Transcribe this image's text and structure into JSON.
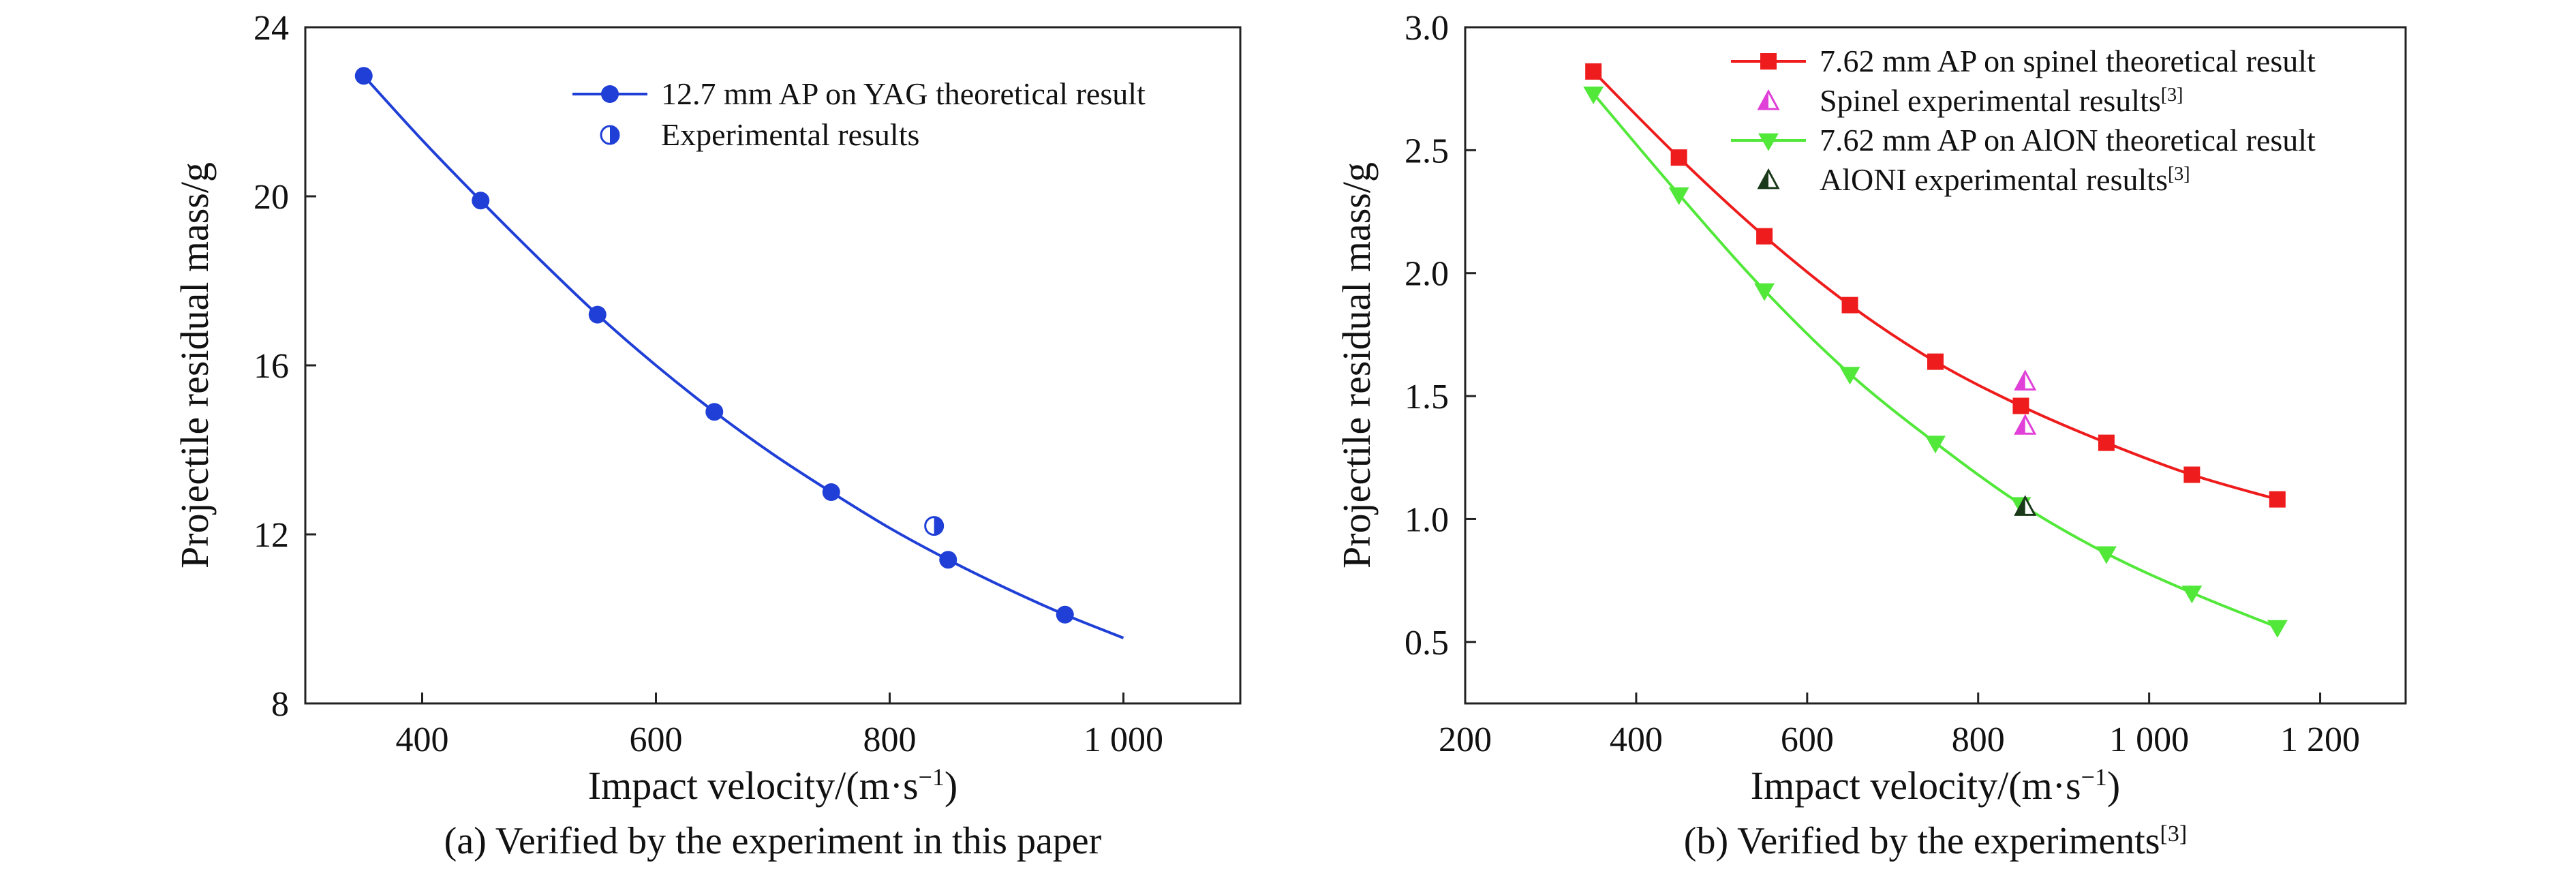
{
  "colors": {
    "blue": "#1f3fd6",
    "red": "#ee1c1c",
    "green": "#52e83a",
    "magenta": "#e040d8",
    "dark_green": "#1a3a1a"
  },
  "chart_data": [
    {
      "type": "line",
      "caption": "(a) Verified by the experiment in this paper",
      "xlabel": "Impact velocity/(m·s",
      "xlabel_exp": "−1",
      "xlabel_close": ")",
      "ylabel": "Projectile residual mass/g",
      "xlim": [
        300,
        1100
      ],
      "ylim": [
        8,
        24
      ],
      "xticks": [
        {
          "value": 400,
          "label": "400"
        },
        {
          "value": 600,
          "label": "600"
        },
        {
          "value": 800,
          "label": "800"
        },
        {
          "value": 1000,
          "label": "1 000"
        }
      ],
      "yticks": [
        {
          "value": 8,
          "label": "8"
        },
        {
          "value": 12,
          "label": "12"
        },
        {
          "value": 16,
          "label": "16"
        },
        {
          "value": 20,
          "label": "20"
        },
        {
          "value": 24,
          "label": "24"
        }
      ],
      "legend_position": "top-right",
      "series": [
        {
          "name": "12.7 mm AP on YAG theoretical result",
          "marker": "circle",
          "color": "#1f3fd6",
          "line": true,
          "x": [
            350,
            450,
            550,
            650,
            750,
            850,
            950
          ],
          "y": [
            22.85,
            19.9,
            17.2,
            14.9,
            13.0,
            11.4,
            10.1
          ],
          "line_x": [
            350,
            400,
            450,
            500,
            550,
            600,
            650,
            700,
            750,
            800,
            850,
            900,
            950,
            1000
          ],
          "line_y": [
            22.85,
            21.33,
            19.9,
            18.52,
            17.2,
            16.0,
            14.9,
            13.9,
            13.0,
            12.15,
            11.4,
            10.72,
            10.1,
            9.55
          ]
        },
        {
          "name": "Experimental results",
          "marker": "half-circle",
          "color": "#1f3fd6",
          "line": false,
          "x": [
            838
          ],
          "y": [
            12.2
          ]
        }
      ]
    },
    {
      "type": "line",
      "caption": "(b) Verified by the experiments",
      "caption_ref": "[3]",
      "xlabel": "Impact velocity/(m·s",
      "xlabel_exp": "−1",
      "xlabel_close": ")",
      "ylabel": "Projectile residual mass/g",
      "xlim": [
        200,
        1300
      ],
      "ylim": [
        0.25,
        3.0
      ],
      "xticks": [
        {
          "value": 200,
          "label": "200"
        },
        {
          "value": 400,
          "label": "400"
        },
        {
          "value": 600,
          "label": "600"
        },
        {
          "value": 800,
          "label": "800"
        },
        {
          "value": 1000,
          "label": "1 000"
        },
        {
          "value": 1200,
          "label": "1 200"
        }
      ],
      "yticks": [
        {
          "value": 0.5,
          "label": "0.5"
        },
        {
          "value": 1.0,
          "label": "1.0"
        },
        {
          "value": 1.5,
          "label": "1.5"
        },
        {
          "value": 2.0,
          "label": "2.0"
        },
        {
          "value": 2.5,
          "label": "2.5"
        },
        {
          "value": 3.0,
          "label": "3.0"
        }
      ],
      "legend_position": "top-right",
      "series": [
        {
          "name": "7.62 mm AP on spinel theoretical result",
          "marker": "square",
          "color": "#ee1c1c",
          "line": true,
          "x": [
            350,
            450,
            550,
            650,
            750,
            850,
            950,
            1050,
            1150
          ],
          "y": [
            2.82,
            2.47,
            2.15,
            1.87,
            1.64,
            1.46,
            1.31,
            1.18,
            1.08
          ]
        },
        {
          "name": "Spinel experimental results",
          "name_ref": "[3]",
          "marker": "half-triangle-up",
          "color": "#e040d8",
          "line": false,
          "x": [
            855,
            855
          ],
          "y": [
            1.56,
            1.38
          ]
        },
        {
          "name": "7.62 mm AP on AlON theoretical result",
          "marker": "triangle-down",
          "color": "#52e83a",
          "line": true,
          "x": [
            350,
            450,
            550,
            650,
            750,
            850,
            950,
            1050,
            1150
          ],
          "y": [
            2.73,
            2.32,
            1.93,
            1.59,
            1.31,
            1.06,
            0.86,
            0.7,
            0.56
          ]
        },
        {
          "name": "AlONI experimental results",
          "name_ref": "[3]",
          "marker": "half-triangle-up",
          "color": "#1a3a1a",
          "line": false,
          "x": [
            855
          ],
          "y": [
            1.05
          ]
        }
      ]
    }
  ]
}
